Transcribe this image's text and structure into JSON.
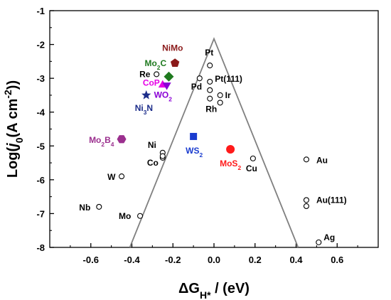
{
  "chart_data": {
    "type": "scatter",
    "xlabel_parts": [
      "ΔG",
      "H*",
      " / (eV)"
    ],
    "ylabel_parts": [
      "Log(",
      "j",
      "0",
      "(A cm",
      "-2",
      "))"
    ],
    "xlim": [
      -0.8,
      0.8
    ],
    "ylim": [
      -8,
      -1
    ],
    "x_ticks": [
      -0.6,
      -0.4,
      -0.2,
      0.0,
      0.2,
      0.4,
      0.6
    ],
    "x_tick_labels": [
      "-0.6",
      "-0.4",
      "-0.2",
      "0.0",
      "0.2",
      "0.4",
      "0.6"
    ],
    "y_ticks": [
      -8,
      -7,
      -6,
      -5,
      -4,
      -3,
      -2,
      -1
    ],
    "y_tick_labels": [
      "-8",
      "-7",
      "-6",
      "-5",
      "-4",
      "-3",
      "-2",
      "-1"
    ],
    "volcano_line": [
      [
        -0.41,
        -8
      ],
      [
        0.0,
        -1.83
      ],
      [
        0.41,
        -8
      ]
    ],
    "metals": [
      {
        "label": "Pt",
        "x": -0.02,
        "y": -2.62
      },
      {
        "label": "Pt(111)",
        "x": -0.02,
        "y": -3.1
      },
      {
        "label": "Pd",
        "x": -0.07,
        "y": -3.0
      },
      {
        "label": "Re",
        "x": -0.28,
        "y": -2.88
      },
      {
        "label": "Ir",
        "x": 0.03,
        "y": -3.5
      },
      {
        "label": "Rh",
        "x": -0.02,
        "y": -3.6
      },
      {
        "label": "Ni",
        "x": -0.25,
        "y": -5.2
      },
      {
        "label": "Co",
        "x": -0.25,
        "y": -5.35
      },
      {
        "label": "W",
        "x": -0.45,
        "y": -5.9
      },
      {
        "label": "Nb",
        "x": -0.56,
        "y": -6.8
      },
      {
        "label": "Mo",
        "x": -0.36,
        "y": -7.07
      },
      {
        "label": "Cu",
        "x": 0.19,
        "y": -5.37
      },
      {
        "label": "Au",
        "x": 0.45,
        "y": -5.4
      },
      {
        "label": "Au(111)",
        "x": 0.45,
        "y": -6.6
      },
      {
        "label": "Ag",
        "x": 0.51,
        "y": -7.85
      }
    ],
    "extra_points": [
      {
        "x": -0.02,
        "y": -3.35
      },
      {
        "x": 0.03,
        "y": -3.72
      },
      {
        "x": -0.25,
        "y": -5.3
      },
      {
        "x": 0.45,
        "y": -6.78
      }
    ],
    "catalysts": [
      {
        "label": "NiMo",
        "parts": [
          "NiMo"
        ],
        "x": -0.19,
        "y": -2.55,
        "shape": "pentagon",
        "color": "#8b1a1a"
      },
      {
        "label": "Mo2C",
        "parts": [
          "Mo",
          "2",
          "C"
        ],
        "x": -0.22,
        "y": -2.95,
        "shape": "diamond",
        "color": "#1f7a1f"
      },
      {
        "label": "CoP",
        "parts": [
          "CoP"
        ],
        "x": -0.25,
        "y": -3.2,
        "shape": "triangle-up",
        "color": "#e600e6"
      },
      {
        "label": "WO2",
        "parts": [
          "WO",
          "2"
        ],
        "x": -0.23,
        "y": -3.2,
        "shape": "triangle-down",
        "color": "#8a00d6"
      },
      {
        "label": "Ni3N",
        "parts": [
          "Ni",
          "3",
          "N"
        ],
        "x": -0.33,
        "y": -3.5,
        "shape": "star",
        "color": "#1c2d8a"
      },
      {
        "label": "Mo2B4",
        "parts": [
          "Mo",
          "2",
          "B",
          "4"
        ],
        "x": -0.45,
        "y": -4.8,
        "shape": "hexagon",
        "color": "#9b2f8e"
      },
      {
        "label": "WS2",
        "parts": [
          "WS",
          "2"
        ],
        "x": -0.1,
        "y": -4.72,
        "shape": "square",
        "color": "#1a3ccf"
      },
      {
        "label": "MoS2",
        "parts": [
          "MoS",
          "2"
        ],
        "x": 0.08,
        "y": -5.1,
        "shape": "circle",
        "color": "#ff1a1a"
      }
    ]
  }
}
